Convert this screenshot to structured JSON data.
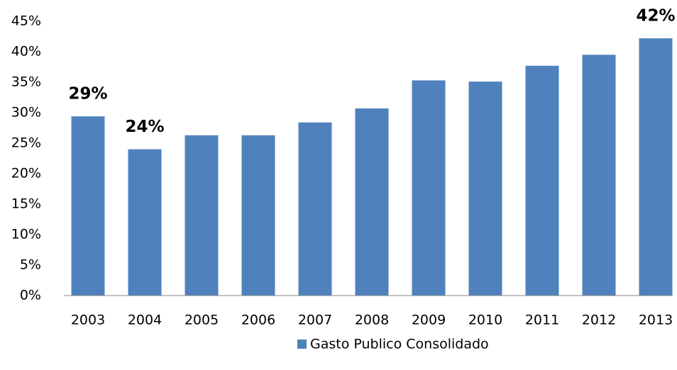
{
  "chart_data": {
    "type": "bar",
    "categories": [
      "2003",
      "2004",
      "2005",
      "2006",
      "2007",
      "2008",
      "2009",
      "2010",
      "2011",
      "2012",
      "2013"
    ],
    "series": [
      {
        "name": "Gasto Publico Consolidado",
        "color": "#4f81bd",
        "values": [
          29.4,
          24.0,
          26.3,
          26.3,
          28.4,
          30.7,
          35.3,
          35.1,
          37.7,
          39.5,
          42.2
        ],
        "value_labels": [
          "29%",
          "24%",
          null,
          null,
          null,
          null,
          null,
          null,
          null,
          null,
          "42%"
        ]
      }
    ],
    "ylim": [
      0,
      45
    ],
    "yticks": [
      {
        "value": 0,
        "label": "0%"
      },
      {
        "value": 5,
        "label": "5%"
      },
      {
        "value": 10,
        "label": "10%"
      },
      {
        "value": 15,
        "label": "15%"
      },
      {
        "value": 20,
        "label": "20%"
      },
      {
        "value": 25,
        "label": "25%"
      },
      {
        "value": 30,
        "label": "30%"
      },
      {
        "value": 35,
        "label": "35%"
      },
      {
        "value": 40,
        "label": "40%"
      },
      {
        "value": 45,
        "label": "45%"
      }
    ],
    "grid": false,
    "legend": "bottom"
  }
}
